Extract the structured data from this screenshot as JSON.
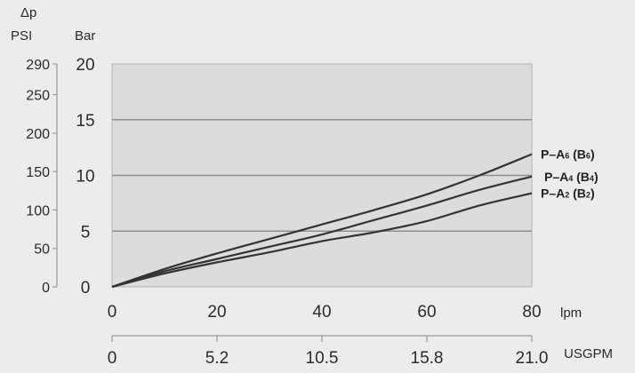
{
  "chart_data": {
    "type": "line",
    "delta_label": "Δp",
    "y_units": {
      "psi": "PSI",
      "bar": "Bar"
    },
    "x_units": {
      "lpm": "lpm",
      "usgpm": "USGPM"
    },
    "bar_axis": {
      "ylim": [
        0,
        20
      ],
      "ticks": [
        0,
        5,
        10,
        15,
        20
      ]
    },
    "psi_axis": {
      "ticks": [
        "0",
        "50",
        "100",
        "150",
        "200",
        "250",
        "290"
      ],
      "tick_values_bar": [
        0,
        3.45,
        6.9,
        10.34,
        13.79,
        17.24,
        20
      ]
    },
    "lpm_axis": {
      "xlim": [
        0,
        80
      ],
      "ticks": [
        0,
        20,
        40,
        60,
        80
      ]
    },
    "usgpm_axis": {
      "ticks": [
        "0",
        "5.2",
        "10.5",
        "15.8",
        "21.0"
      ],
      "tick_values_lpm": [
        0,
        20,
        40,
        60,
        80
      ]
    },
    "grid": true,
    "series": [
      {
        "name": "P–A6 (B6)",
        "prefix": "P–A",
        "sub": "6",
        "mid": " (B",
        "sub2": "6",
        "end": ")",
        "x": [
          0,
          10,
          20,
          30,
          40,
          50,
          60,
          70,
          80
        ],
        "y": [
          0,
          1.6,
          3.0,
          4.3,
          5.6,
          6.9,
          8.3,
          10.0,
          11.9
        ]
      },
      {
        "name": "P–A4 (B4)",
        "prefix": "P–A",
        "sub": "4",
        "mid": " (B",
        "sub2": "4",
        "end": ")",
        "x": [
          0,
          10,
          20,
          30,
          40,
          50,
          60,
          70,
          80
        ],
        "y": [
          0,
          1.4,
          2.5,
          3.6,
          4.7,
          6.0,
          7.3,
          8.7,
          9.9
        ]
      },
      {
        "name": "P–A2 (B2)",
        "prefix": "P–A",
        "sub": "2",
        "mid": " (B",
        "sub2": "2",
        "end": ")",
        "x": [
          0,
          10,
          20,
          30,
          40,
          50,
          60,
          70,
          80
        ],
        "y": [
          0,
          1.2,
          2.2,
          3.1,
          4.1,
          4.9,
          5.9,
          7.3,
          8.4
        ]
      }
    ]
  }
}
